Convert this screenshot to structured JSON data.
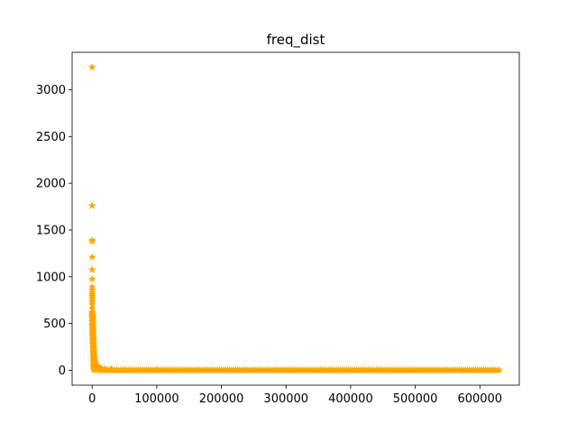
{
  "chart_data": {
    "type": "scatter",
    "title": "freq_dist",
    "xlabel": "",
    "ylabel": "",
    "xlim": [
      -31000,
      661000
    ],
    "ylim": [
      -160,
      3400
    ],
    "grid": false,
    "marker": "star",
    "marker_color": "#ffa500",
    "x_ticks": [
      0,
      100000,
      200000,
      300000,
      400000,
      500000,
      600000
    ],
    "x_tick_labels": [
      "0",
      "100000",
      "200000",
      "300000",
      "400000",
      "500000",
      "600000"
    ],
    "y_ticks": [
      0,
      500,
      1000,
      1500,
      2000,
      2500,
      3000
    ],
    "y_tick_labels": [
      "0",
      "500",
      "1000",
      "1500",
      "2000",
      "2500",
      "3000"
    ],
    "series": [
      {
        "points": [
          [
            0,
            3240
          ],
          [
            10,
            1760
          ],
          [
            20,
            1390
          ],
          [
            30,
            1380
          ],
          [
            40,
            1210
          ],
          [
            50,
            1075
          ],
          [
            60,
            975
          ],
          [
            70,
            890
          ],
          [
            80,
            860
          ],
          [
            90,
            830
          ],
          [
            100,
            810
          ],
          [
            110,
            790
          ],
          [
            120,
            770
          ],
          [
            130,
            750
          ],
          [
            140,
            730
          ],
          [
            150,
            700
          ],
          [
            160,
            660
          ],
          [
            170,
            620
          ],
          [
            180,
            600
          ],
          [
            190,
            580
          ],
          [
            200,
            560
          ],
          [
            300,
            520
          ],
          [
            400,
            480
          ],
          [
            500,
            440
          ],
          [
            700,
            400
          ],
          [
            900,
            360
          ],
          [
            1200,
            320
          ],
          [
            1500,
            280
          ],
          [
            1800,
            250
          ],
          [
            2200,
            220
          ],
          [
            2600,
            190
          ],
          [
            3000,
            160
          ],
          [
            3500,
            130
          ],
          [
            4000,
            110
          ],
          [
            4500,
            90
          ],
          [
            5000,
            75
          ],
          [
            6000,
            60
          ],
          [
            7000,
            50
          ],
          [
            8000,
            40
          ],
          [
            10000,
            30
          ],
          [
            14000,
            22
          ],
          [
            20000,
            15
          ],
          [
            30000,
            10
          ],
          [
            50000,
            6
          ],
          [
            100000,
            3
          ],
          [
            630000,
            1
          ]
        ]
      }
    ]
  }
}
